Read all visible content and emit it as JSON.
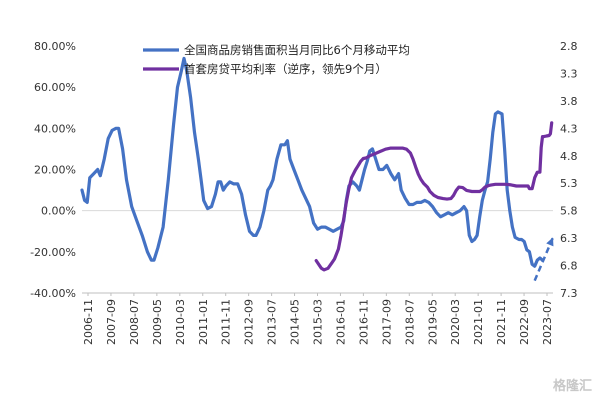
{
  "chart_data": {
    "type": "line",
    "title": "",
    "y_left": {
      "ticks": [
        "80.00%",
        "60.00%",
        "40.00%",
        "20.00%",
        "0.00%",
        "-20.00%",
        "-40.00%"
      ],
      "values": [
        80,
        60,
        40,
        20,
        0,
        -20,
        -40
      ],
      "ylim": [
        -40,
        80
      ]
    },
    "y_right": {
      "ticks": [
        "2.8",
        "3.3",
        "3.8",
        "4.3",
        "4.8",
        "5.3",
        "5.8",
        "6.3",
        "6.8",
        "7.3"
      ],
      "values": [
        2.8,
        3.3,
        3.8,
        4.3,
        4.8,
        5.3,
        5.8,
        6.3,
        6.8,
        7.3
      ],
      "ylim": [
        2.8,
        7.3
      ],
      "inverted": true
    },
    "x_ticks": [
      "2006-11",
      "2007-09",
      "2008-07",
      "2009-05",
      "2010-03",
      "2011-01",
      "2011-11",
      "2012-09",
      "2013-07",
      "2014-05",
      "2015-03",
      "2016-01",
      "2016-11",
      "2017-09",
      "2018-07",
      "2019-05",
      "2020-03",
      "2021-01",
      "2021-11",
      "2022-09",
      "2023-07"
    ],
    "series": [
      {
        "name": "全国商品房销售面积当月同比6个月移动平均",
        "color": "#4472C4",
        "axis": "left",
        "points": [
          [
            2006.9,
            10
          ],
          [
            2007.0,
            5
          ],
          [
            2007.1,
            4
          ],
          [
            2007.2,
            16
          ],
          [
            2007.35,
            18
          ],
          [
            2007.5,
            20
          ],
          [
            2007.6,
            17
          ],
          [
            2007.75,
            25
          ],
          [
            2007.9,
            35
          ],
          [
            2008.05,
            39
          ],
          [
            2008.2,
            40
          ],
          [
            2008.3,
            40
          ],
          [
            2008.45,
            30
          ],
          [
            2008.6,
            15
          ],
          [
            2008.8,
            2
          ],
          [
            2009.0,
            -5
          ],
          [
            2009.2,
            -12
          ],
          [
            2009.4,
            -20
          ],
          [
            2009.55,
            -24
          ],
          [
            2009.65,
            -24
          ],
          [
            2009.8,
            -18
          ],
          [
            2010.0,
            -8
          ],
          [
            2010.2,
            15
          ],
          [
            2010.4,
            42
          ],
          [
            2010.55,
            60
          ],
          [
            2010.7,
            68
          ],
          [
            2010.8,
            74
          ],
          [
            2010.9,
            68
          ],
          [
            2011.05,
            55
          ],
          [
            2011.2,
            38
          ],
          [
            2011.35,
            25
          ],
          [
            2011.45,
            15
          ],
          [
            2011.55,
            5
          ],
          [
            2011.7,
            1
          ],
          [
            2011.85,
            2
          ],
          [
            2012.0,
            8
          ],
          [
            2012.1,
            14
          ],
          [
            2012.2,
            14
          ],
          [
            2012.3,
            10
          ],
          [
            2012.4,
            12
          ],
          [
            2012.55,
            14
          ],
          [
            2012.7,
            13
          ],
          [
            2012.85,
            13
          ],
          [
            2013.0,
            8
          ],
          [
            2013.15,
            -2
          ],
          [
            2013.3,
            -10
          ],
          [
            2013.45,
            -12
          ],
          [
            2013.55,
            -12
          ],
          [
            2013.7,
            -8
          ],
          [
            2013.85,
            0
          ],
          [
            2014.0,
            10
          ],
          [
            2014.1,
            12
          ],
          [
            2014.2,
            15
          ],
          [
            2014.35,
            25
          ],
          [
            2014.5,
            32
          ],
          [
            2014.65,
            32
          ],
          [
            2014.75,
            34
          ],
          [
            2014.85,
            25
          ],
          [
            2015.0,
            20
          ],
          [
            2015.15,
            15
          ],
          [
            2015.3,
            10
          ],
          [
            2015.45,
            6
          ],
          [
            2015.6,
            2
          ],
          [
            2015.75,
            -6
          ],
          [
            2015.9,
            -9
          ],
          [
            2016.05,
            -8
          ],
          [
            2016.2,
            -8
          ],
          [
            2016.35,
            -9
          ],
          [
            2016.5,
            -10
          ],
          [
            2016.65,
            -9
          ],
          [
            2016.8,
            -8
          ],
          [
            2016.9,
            -5
          ],
          [
            2017.0,
            5
          ],
          [
            2017.1,
            12
          ],
          [
            2017.25,
            14
          ],
          [
            2017.4,
            12
          ],
          [
            2017.5,
            10
          ],
          [
            2017.6,
            15
          ],
          [
            2017.7,
            20
          ],
          [
            2017.8,
            24
          ],
          [
            2017.9,
            29
          ],
          [
            2018.0,
            30
          ],
          [
            2018.1,
            26
          ],
          [
            2018.25,
            20
          ],
          [
            2018.4,
            20
          ],
          [
            2018.55,
            22
          ],
          [
            2018.7,
            18
          ],
          [
            2018.85,
            15
          ],
          [
            2019.0,
            18
          ],
          [
            2019.1,
            10
          ],
          [
            2019.25,
            6
          ],
          [
            2019.4,
            3
          ],
          [
            2019.55,
            3
          ],
          [
            2019.7,
            4
          ],
          [
            2019.85,
            4
          ],
          [
            2020.0,
            5
          ],
          [
            2020.15,
            4
          ],
          [
            2020.3,
            2
          ],
          [
            2020.45,
            -1
          ],
          [
            2020.6,
            -3
          ],
          [
            2020.75,
            -2
          ],
          [
            2020.9,
            -1
          ],
          [
            2021.05,
            -2
          ],
          [
            2021.2,
            -1
          ],
          [
            2021.35,
            0
          ],
          [
            2021.5,
            2
          ],
          [
            2021.6,
            0
          ],
          [
            2021.7,
            -12
          ],
          [
            2021.8,
            -15
          ],
          [
            2021.9,
            -14
          ],
          [
            2022.0,
            -12
          ],
          [
            2022.1,
            -3
          ],
          [
            2022.2,
            5
          ],
          [
            2022.3,
            10
          ],
          [
            2022.4,
            14
          ],
          [
            2022.5,
            25
          ],
          [
            2022.6,
            38
          ],
          [
            2022.7,
            47
          ],
          [
            2022.8,
            48
          ],
          [
            2022.95,
            47
          ],
          [
            2023.05,
            30
          ],
          [
            2023.15,
            10
          ],
          [
            2023.25,
            0
          ],
          [
            2023.35,
            -8
          ],
          [
            2023.45,
            -13
          ],
          [
            2023.6,
            -14
          ],
          [
            2023.7,
            -14
          ],
          [
            2023.8,
            -15
          ],
          [
            2023.9,
            -19
          ],
          [
            2024.0,
            -20
          ],
          [
            2024.1,
            -26
          ],
          [
            2024.2,
            -27
          ],
          [
            2024.3,
            -24
          ],
          [
            2024.4,
            -23
          ],
          [
            2024.5,
            -24
          ]
        ]
      },
      {
        "name": "首套房贷平均利率（逆序，领先9个月）",
        "color": "#7030A0",
        "axis": "right",
        "points": [
          [
            2015.85,
            6.71
          ],
          [
            2015.95,
            6.78
          ],
          [
            2016.05,
            6.85
          ],
          [
            2016.15,
            6.88
          ],
          [
            2016.3,
            6.85
          ],
          [
            2016.45,
            6.75
          ],
          [
            2016.55,
            6.68
          ],
          [
            2016.7,
            6.5
          ],
          [
            2016.8,
            6.25
          ],
          [
            2016.9,
            5.95
          ],
          [
            2017.0,
            5.65
          ],
          [
            2017.1,
            5.4
          ],
          [
            2017.2,
            5.2
          ],
          [
            2017.35,
            5.06
          ],
          [
            2017.45,
            4.98
          ],
          [
            2017.55,
            4.9
          ],
          [
            2017.65,
            4.85
          ],
          [
            2017.75,
            4.84
          ],
          [
            2017.9,
            4.8
          ],
          [
            2018.1,
            4.76
          ],
          [
            2018.3,
            4.72
          ],
          [
            2018.5,
            4.68
          ],
          [
            2018.7,
            4.66
          ],
          [
            2018.95,
            4.66
          ],
          [
            2019.15,
            4.66
          ],
          [
            2019.3,
            4.68
          ],
          [
            2019.45,
            4.75
          ],
          [
            2019.55,
            4.86
          ],
          [
            2019.65,
            5.0
          ],
          [
            2019.75,
            5.13
          ],
          [
            2019.85,
            5.23
          ],
          [
            2019.95,
            5.3
          ],
          [
            2020.1,
            5.37
          ],
          [
            2020.2,
            5.45
          ],
          [
            2020.35,
            5.52
          ],
          [
            2020.5,
            5.56
          ],
          [
            2020.7,
            5.58
          ],
          [
            2020.85,
            5.59
          ],
          [
            2021.0,
            5.58
          ],
          [
            2021.1,
            5.52
          ],
          [
            2021.2,
            5.43
          ],
          [
            2021.3,
            5.37
          ],
          [
            2021.45,
            5.38
          ],
          [
            2021.6,
            5.43
          ],
          [
            2021.8,
            5.45
          ],
          [
            2021.95,
            5.45
          ],
          [
            2022.1,
            5.45
          ],
          [
            2022.2,
            5.42
          ],
          [
            2022.3,
            5.37
          ],
          [
            2022.45,
            5.34
          ],
          [
            2022.55,
            5.33
          ],
          [
            2022.7,
            5.32
          ],
          [
            2022.9,
            5.32
          ],
          [
            2023.1,
            5.32
          ],
          [
            2023.3,
            5.33
          ],
          [
            2023.5,
            5.35
          ],
          [
            2023.7,
            5.35
          ],
          [
            2023.85,
            5.35
          ],
          [
            2023.95,
            5.35
          ],
          [
            2024.0,
            5.4
          ],
          [
            2024.05,
            5.4
          ],
          [
            2024.1,
            5.4
          ],
          [
            2024.2,
            5.2
          ],
          [
            2024.3,
            5.1
          ],
          [
            2024.4,
            5.1
          ],
          [
            2024.45,
            4.65
          ],
          [
            2024.5,
            4.45
          ],
          [
            2024.55,
            4.45
          ],
          [
            2024.65,
            4.44
          ],
          [
            2024.75,
            4.43
          ],
          [
            2024.8,
            4.4
          ],
          [
            2024.85,
            4.2
          ]
        ]
      }
    ],
    "legend": "top",
    "annotations": [
      {
        "type": "dashed-arrow",
        "color": "#4472C4",
        "from": [
          2024.2,
          -34
        ],
        "to": [
          2024.9,
          -13
        ]
      }
    ],
    "watermark": "格隆汇"
  },
  "ui": {
    "colors": {
      "axis": "#bfbfbf",
      "text": "#333333"
    }
  }
}
